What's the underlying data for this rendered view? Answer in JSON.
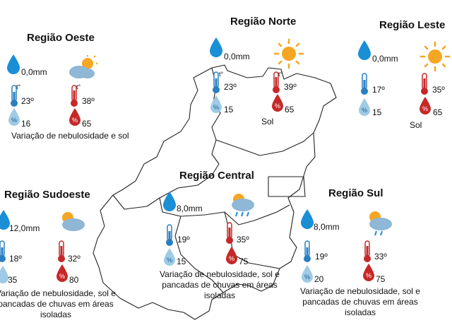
{
  "regions": {
    "oeste": {
      "title": "Região Oeste",
      "rain": "0,0mm",
      "tmin": "23º",
      "tmax": "38º",
      "hmin": "16",
      "hmax": "65",
      "desc": "Variação de nebulosidade e sol",
      "icon": "sun-cloud-icon"
    },
    "norte": {
      "title": "Região Norte",
      "rain": "0,0mm",
      "tmin": "23º",
      "tmax": "39º",
      "hmin": "15",
      "hmax": "65",
      "desc": "Sol",
      "icon": "sun-icon"
    },
    "leste": {
      "title": "Região Leste",
      "rain": "0,0mm",
      "tmin": "17º",
      "tmax": "35º",
      "hmin": "15",
      "hmax": "65",
      "desc": "Sol",
      "icon": "sun-icon"
    },
    "central": {
      "title": "Região Central",
      "rain": "8,0mm",
      "tmin": "19º",
      "tmax": "35º",
      "hmin": "15",
      "hmax": "75",
      "desc": "Variação de nebulosidade, sol e pancadas de chuvas em áreas isoladas",
      "icon": "sun-cloud-rain-icon"
    },
    "sudoeste": {
      "title": "Região Sudoeste",
      "rain": "12,0mm",
      "tmin": "18º",
      "tmax": "32º",
      "hmin": "35",
      "hmax": "80",
      "desc": "Variação de nebulosidade, sol e pancadas de chuvas em áreas isoladas",
      "icon": "sun-cloud-rain-icon"
    },
    "sul": {
      "title": "Região Sul",
      "rain": "8,0mm",
      "tmin": "19º",
      "tmax": "33º",
      "hmin": "20",
      "hmax": "75",
      "desc": "Variação de nebulosidade, sol e pancadas de chuvas em áreas isoladas",
      "icon": "sun-cloud-rain-icon"
    }
  },
  "thermo_label": "t°",
  "humidity_symbol": "%",
  "colors": {
    "rain_blue": "#1a8fd6",
    "cold_blue": "#2a7fc1",
    "hot_red": "#c62828",
    "humidity_light": "#9fcbe6",
    "sun": "#f5a623",
    "cloud": "#8fb7d6"
  }
}
